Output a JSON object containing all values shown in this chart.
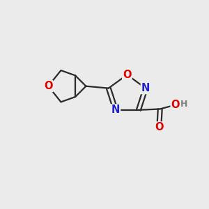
{
  "bg_color": "#ebebeb",
  "bond_color": "#2a2a2a",
  "atom_colors": {
    "O": "#e00000",
    "N": "#2020cc",
    "H": "#808080"
  },
  "bond_width": 1.6,
  "font_size_atom": 10.5,
  "font_size_H": 9.0
}
